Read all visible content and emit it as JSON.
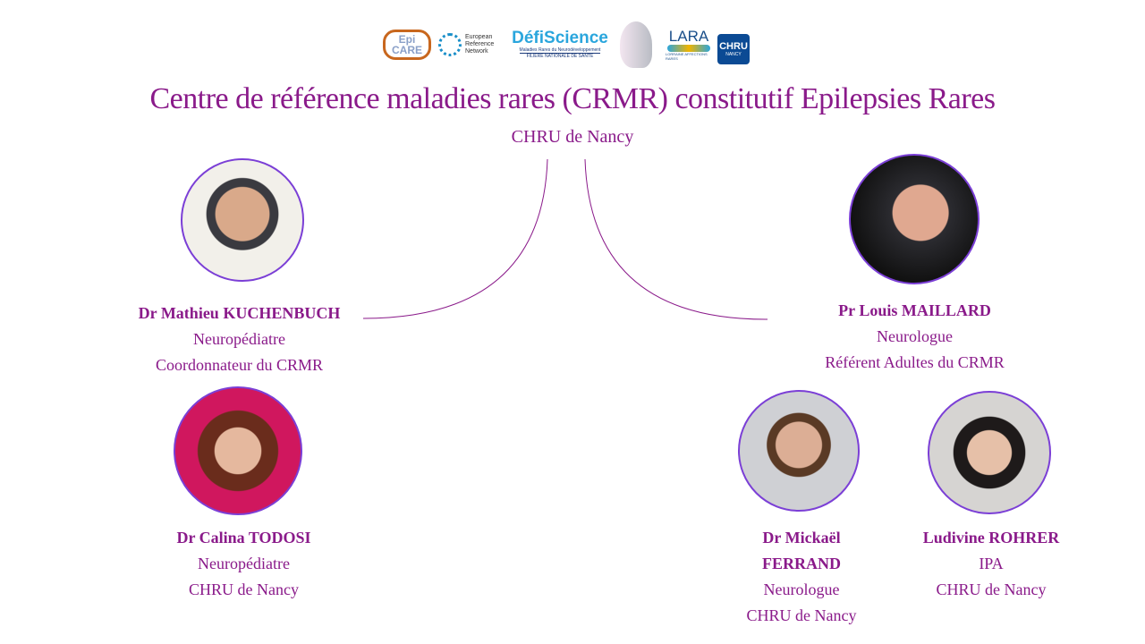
{
  "logos": [
    {
      "name": "epicare-logo",
      "text": "Epi CARE",
      "color": "#c8671e"
    },
    {
      "name": "ern-logo",
      "text": "European Reference Network",
      "color": "#1a8fc9"
    },
    {
      "name": "defiscience-logo",
      "text": "DéfiScience",
      "tagline": "Maladies Rares du Neurodéveloppement",
      "sub": "FILIÈRE NATIONALE DE SANTÉ",
      "color": "#2aa6dd"
    },
    {
      "name": "crmr-head-logo",
      "text": "",
      "color": "#888"
    },
    {
      "name": "lara-logo",
      "text": "LARA",
      "sub": "LORRAINE AFFECTIONS RARES",
      "color": "#1a4f8a"
    },
    {
      "name": "chru-logo",
      "text": "CHRU",
      "sub": "NANCY",
      "color": "#0b4a94"
    }
  ],
  "title": "Centre de référence maladies rares (CRMR) constitutif  Epilepsies Rares",
  "subtitle": "CHRU de Nancy",
  "colors": {
    "text": "#8a1a8a",
    "border": "#7b3fd6"
  },
  "people": [
    {
      "name": "Dr Mathieu KUCHENBUCH",
      "role": "Neuropédiatre",
      "detail": "Coordonnateur du CRMR"
    },
    {
      "name": "Pr Louis MAILLARD",
      "role": "Neurologue",
      "detail": "Référent Adultes du CRMR"
    },
    {
      "name": "Dr Calina TODOSI",
      "role": "Neuropédiatre",
      "detail": "CHRU de Nancy"
    },
    {
      "name_line1": "Dr Mickaël",
      "name_line2": "FERRAND",
      "role": "Neurologue",
      "detail": "CHRU de Nancy"
    },
    {
      "name": "Ludivine ROHRER",
      "role": "IPA",
      "detail": "CHRU de Nancy"
    }
  ]
}
